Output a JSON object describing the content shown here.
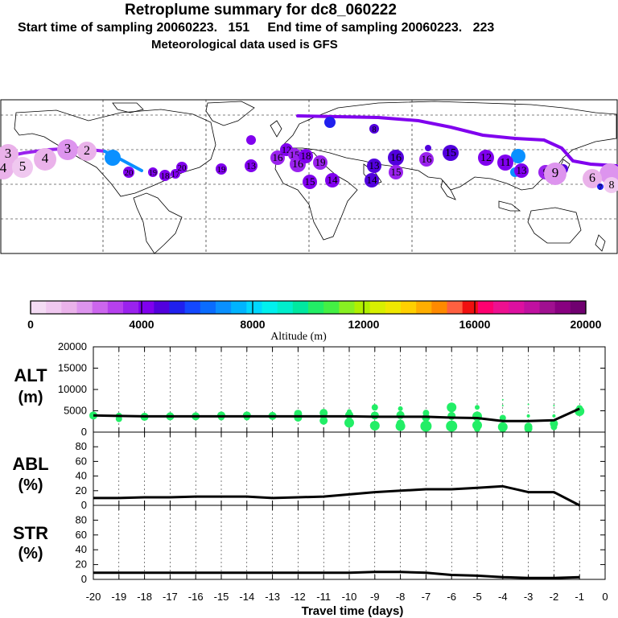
{
  "header": {
    "title": "Retroplume summary for dc8_060222",
    "subtitle": "Start time of sampling 20060223.   151     End time of sampling 20060223.   223",
    "subtitle2": "Meteorological data used is GFS"
  },
  "colorbar": {
    "colors": [
      "#f4dcf4",
      "#f0c8f0",
      "#eab2ea",
      "#dd94ee",
      "#cc66ee",
      "#b640ee",
      "#9a22ee",
      "#8000ee",
      "#5200dd",
      "#2020ee",
      "#1448ff",
      "#0a6cff",
      "#0a90ff",
      "#00b4ff",
      "#00d8ff",
      "#00f0ee",
      "#00eecc",
      "#00e8a0",
      "#22ee66",
      "#44f044",
      "#88f022",
      "#b0f000",
      "#d8f000",
      "#f0e800",
      "#ffd000",
      "#ffae00",
      "#ff8a00",
      "#ff6040",
      "#f01010",
      "#ff0070",
      "#ee1090",
      "#dd10a0",
      "#c010a0",
      "#a01090",
      "#880080",
      "#700070"
    ],
    "tick_labels": [
      "0",
      "4000",
      "8000",
      "12000",
      "16000",
      "20000"
    ],
    "label": "Altitude (m)"
  },
  "map": {
    "markers": [
      {
        "label": "3",
        "color": "#eab2ea",
        "size": 13
      },
      {
        "label": "4",
        "color": "#eab2ea",
        "size": 13
      },
      {
        "label": "5",
        "color": "#f0c8f0",
        "size": 13
      },
      {
        "label": "4",
        "color": "#eab2ea",
        "size": 14
      },
      {
        "label": "3",
        "color": "#dd94ee",
        "size": 13
      },
      {
        "label": "2",
        "color": "#eab2ea",
        "size": 12
      },
      {
        "label": "20",
        "color": "#8000ee",
        "size": 7
      },
      {
        "label": "19",
        "color": "#8000ee",
        "size": 6
      },
      {
        "label": "18",
        "color": "#8000ee",
        "size": 7
      },
      {
        "label": "17",
        "color": "#8000ee",
        "size": 6
      },
      {
        "label": "20",
        "color": "#8000ee",
        "size": 7
      },
      {
        "label": "19",
        "color": "#8000ee",
        "size": 7
      },
      {
        "label": "13",
        "color": "#8000ee",
        "size": 8
      },
      {
        "label": "16",
        "color": "#9a22ee",
        "size": 9
      },
      {
        "label": "12",
        "color": "#8000ee",
        "size": 8
      },
      {
        "label": "15",
        "color": "#9a22ee",
        "size": 8
      },
      {
        "label": "16",
        "color": "#9a22ee",
        "size": 10
      },
      {
        "label": "18",
        "color": "#8000ee",
        "size": 9
      },
      {
        "label": "19",
        "color": "#9a22ee",
        "size": 9
      },
      {
        "label": "15",
        "color": "#8000ee",
        "size": 9
      },
      {
        "label": "14",
        "color": "#8000ee",
        "size": 9
      },
      {
        "label": "13",
        "color": "#5200dd",
        "size": 9
      },
      {
        "label": "16",
        "color": "#5200dd",
        "size": 10
      },
      {
        "label": "16",
        "color": "#9a22ee",
        "size": 9
      },
      {
        "label": "15",
        "color": "#9a22ee",
        "size": 9
      },
      {
        "label": "14",
        "color": "#5200dd",
        "size": 9
      },
      {
        "label": "15",
        "color": "#5200dd",
        "size": 10
      },
      {
        "label": "12",
        "color": "#8000ee",
        "size": 10
      },
      {
        "label": "11",
        "color": "#8000ee",
        "size": 10
      },
      {
        "label": "13",
        "color": "#8000ee",
        "size": 9
      },
      {
        "label": "9",
        "color": "#9a22ee",
        "size": 9
      },
      {
        "label": "9",
        "color": "#dd94ee",
        "size": 14
      },
      {
        "label": "6",
        "color": "#eab2ea",
        "size": 12
      },
      {
        "label": "8",
        "color": "#f0c8f0",
        "size": 10
      },
      {
        "label": "7",
        "color": "#2020ee",
        "size": 4
      },
      {
        "label": "8",
        "color": "#5200dd",
        "size": 6
      }
    ]
  },
  "panel_labels": {
    "alt": [
      "ALT",
      "(m)"
    ],
    "abl": [
      "ABL",
      "(%)"
    ],
    "str": [
      "STR",
      "(%)"
    ]
  },
  "chart_data": {
    "type": "line",
    "title": "Retroplume summary for dc8_060222",
    "xlabel": "Travel time (days)",
    "x_ticks": [
      "-20",
      "-19",
      "-18",
      "-17",
      "-16",
      "-15",
      "-14",
      "-13",
      "-12",
      "-11",
      "-10",
      "-9",
      "-8",
      "-7",
      "-6",
      "-5",
      "-4",
      "-3",
      "-2",
      "-1",
      "0"
    ],
    "xlim": [
      -20,
      0
    ],
    "panels": [
      {
        "name": "ALT",
        "ylabel": "ALT (m)",
        "ylim": [
          0,
          20000
        ],
        "y_ticks": [
          "0",
          "5000",
          "10000",
          "15000",
          "20000"
        ],
        "x": [
          -20,
          -19,
          -18,
          -17,
          -16,
          -15,
          -14,
          -13,
          -12,
          -11,
          -10,
          -9,
          -8,
          -7,
          -6,
          -5,
          -4,
          -3,
          -2,
          -1
        ],
        "values": [
          3900,
          3800,
          3700,
          3700,
          3700,
          3700,
          3700,
          3700,
          3700,
          3700,
          3700,
          3600,
          3600,
          3600,
          3400,
          3300,
          2600,
          2600,
          2800,
          5500
        ],
        "scatter_color": "#22ee66",
        "scatter": [
          [
            -20,
            3900,
            5
          ],
          [
            -19,
            3800,
            4
          ],
          [
            -19,
            3100,
            4
          ],
          [
            -18,
            3600,
            5
          ],
          [
            -17,
            3700,
            5
          ],
          [
            -16,
            3700,
            5
          ],
          [
            -15,
            3900,
            5
          ],
          [
            -15,
            3500,
            4
          ],
          [
            -14,
            3900,
            5
          ],
          [
            -14,
            3500,
            4
          ],
          [
            -13,
            3800,
            5
          ],
          [
            -12,
            4300,
            5
          ],
          [
            -12,
            3400,
            5
          ],
          [
            -11,
            4500,
            5
          ],
          [
            -11,
            2700,
            5
          ],
          [
            -10,
            4800,
            3
          ],
          [
            -10,
            4000,
            5
          ],
          [
            -10,
            2200,
            6
          ],
          [
            -9,
            5800,
            4
          ],
          [
            -9,
            3900,
            5
          ],
          [
            -9,
            1500,
            6
          ],
          [
            -8,
            5500,
            3
          ],
          [
            -8,
            4000,
            5
          ],
          [
            -8,
            1400,
            6
          ],
          [
            -8,
            2000,
            5
          ],
          [
            -7,
            4500,
            4
          ],
          [
            -7,
            3400,
            5
          ],
          [
            -7,
            1400,
            7
          ],
          [
            -6,
            5800,
            6
          ],
          [
            -6,
            3800,
            5
          ],
          [
            -6,
            1400,
            7
          ],
          [
            -5,
            5800,
            3
          ],
          [
            -5,
            3700,
            6
          ],
          [
            -5,
            1600,
            6
          ],
          [
            -5,
            800,
            4
          ],
          [
            -4,
            7600,
            1
          ],
          [
            -4,
            6200,
            1
          ],
          [
            -4,
            3300,
            4
          ],
          [
            -4,
            1200,
            6
          ],
          [
            -4,
            600,
            4
          ],
          [
            -3,
            6500,
            1
          ],
          [
            -3,
            3800,
            2
          ],
          [
            -3,
            1300,
            5
          ],
          [
            -3,
            800,
            5
          ],
          [
            -2,
            6200,
            1
          ],
          [
            -2,
            3800,
            2
          ],
          [
            -2,
            2000,
            5
          ],
          [
            -2,
            1200,
            4
          ],
          [
            -1,
            4900,
            6
          ],
          [
            -1,
            5600,
            4
          ]
        ]
      },
      {
        "name": "ABL",
        "ylabel": "ABL (%)",
        "ylim": [
          0,
          100
        ],
        "y_ticks": [
          "0",
          "20",
          "40",
          "60",
          "80"
        ],
        "x": [
          -20,
          -19,
          -18,
          -17,
          -16,
          -15,
          -14,
          -13,
          -12,
          -11,
          -10,
          -9,
          -8,
          -7,
          -6,
          -5,
          -4,
          -3,
          -2,
          -1
        ],
        "values": [
          10,
          10,
          11,
          11,
          12,
          12,
          12,
          10,
          11,
          12,
          15,
          18,
          20,
          22,
          22,
          24,
          26,
          18,
          18,
          0
        ]
      },
      {
        "name": "STR",
        "ylabel": "STR (%)",
        "ylim": [
          0,
          100
        ],
        "y_ticks": [
          "0",
          "20",
          "40",
          "60",
          "80"
        ],
        "x": [
          -20,
          -19,
          -18,
          -17,
          -16,
          -15,
          -14,
          -13,
          -12,
          -11,
          -10,
          -9,
          -8,
          -7,
          -6,
          -5,
          -4,
          -3,
          -2,
          -1
        ],
        "values": [
          9,
          9,
          9,
          9,
          9,
          9,
          9,
          9,
          9,
          9,
          9,
          10,
          10,
          9,
          6,
          5,
          3,
          2,
          2,
          3
        ]
      }
    ]
  }
}
